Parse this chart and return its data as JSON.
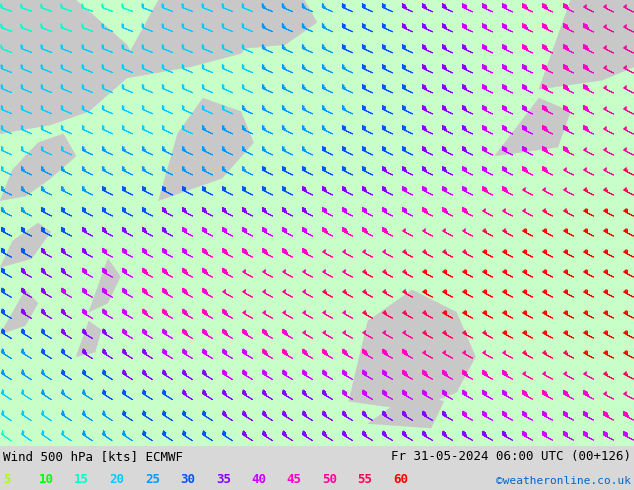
{
  "title_left": "Wind 500 hPa [kts] ECMWF",
  "title_right": "Fr 31-05-2024 06:00 UTC (00+126)",
  "credit": "©weatheronline.co.uk",
  "legend_values": [
    5,
    10,
    15,
    20,
    25,
    30,
    35,
    40,
    45,
    50,
    55,
    60
  ],
  "legend_colors": [
    "#aaff00",
    "#00ff00",
    "#00ffcc",
    "#00ccff",
    "#0099ff",
    "#0055ff",
    "#8800ff",
    "#cc00ff",
    "#ff00cc",
    "#ff0099",
    "#ff0055",
    "#ff0000"
  ],
  "bg_color": "#d8d8d8",
  "ocean_color": "#c8ffc8",
  "land_color": "#c8c8c8",
  "title_fontsize": 9,
  "credit_fontsize": 8,
  "legend_fontsize": 9,
  "speed_thresholds": [
    7.5,
    12.5,
    17.5,
    22.5,
    27.5,
    32.5,
    37.5,
    42.5,
    47.5,
    52.5,
    57.5
  ],
  "barb_colors": [
    "#aaff00",
    "#00ff00",
    "#00ffcc",
    "#00ccff",
    "#0099ff",
    "#0055ff",
    "#8800ff",
    "#cc00ff",
    "#ff00cc",
    "#ff0099",
    "#ff0055",
    "#ff0000"
  ]
}
